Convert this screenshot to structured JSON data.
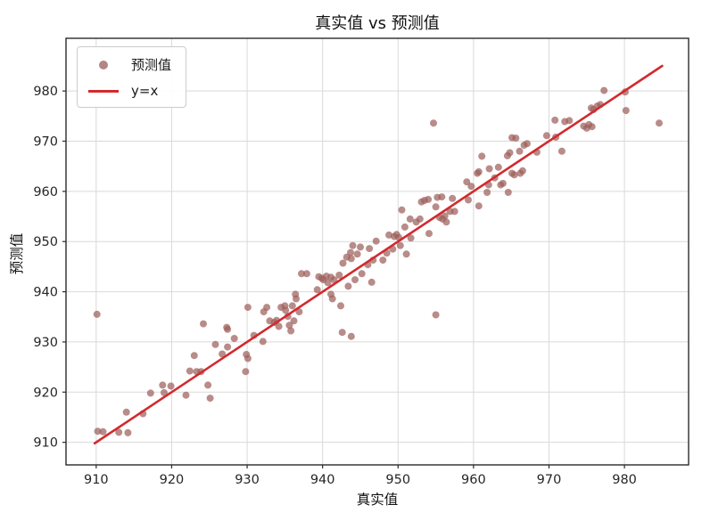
{
  "chart_data": {
    "type": "scatter",
    "title": "真实值 vs 预测值",
    "xlabel": "真实值",
    "ylabel": "预测值",
    "xlim": [
      906,
      988.5
    ],
    "ylim": [
      905.5,
      990.5
    ],
    "xticks": [
      910,
      920,
      930,
      940,
      950,
      960,
      970,
      980
    ],
    "yticks": [
      910,
      920,
      930,
      940,
      950,
      960,
      970,
      980
    ],
    "grid": true,
    "legend_position": "upper left",
    "colors": {
      "scatter": "#9c5f5c",
      "scatter_legend": "#b28682",
      "line": "#d22a2e",
      "grid": "#d9d9d9",
      "spine": "#2a2a2a",
      "tick_text": "#262626"
    },
    "legend": {
      "entries": [
        {
          "label": "预测值",
          "type": "marker"
        },
        {
          "label": "y=x",
          "type": "line"
        }
      ]
    },
    "series": [
      {
        "name": "预测值",
        "type": "scatter",
        "opacity": 0.72,
        "points": [
          [
            910.1,
            935.5
          ],
          [
            910.2,
            912.2
          ],
          [
            910.9,
            912.1
          ],
          [
            913.0,
            912.0
          ],
          [
            914.2,
            911.9
          ],
          [
            914.0,
            916.0
          ],
          [
            916.2,
            915.7
          ],
          [
            917.2,
            919.8
          ],
          [
            919.0,
            919.9
          ],
          [
            921.9,
            919.4
          ],
          [
            925.1,
            918.8
          ],
          [
            918.8,
            921.4
          ],
          [
            919.9,
            921.2
          ],
          [
            922.4,
            924.2
          ],
          [
            923.3,
            924.1
          ],
          [
            923.9,
            924.1
          ],
          [
            924.8,
            921.4
          ],
          [
            923.0,
            927.3
          ],
          [
            924.2,
            933.6
          ],
          [
            927.3,
            932.9
          ],
          [
            925.8,
            929.5
          ],
          [
            926.7,
            927.6
          ],
          [
            927.4,
            932.5
          ],
          [
            927.4,
            929.0
          ],
          [
            928.3,
            930.7
          ],
          [
            930.1,
            936.9
          ],
          [
            929.9,
            927.5
          ],
          [
            930.1,
            926.7
          ],
          [
            929.8,
            924.1
          ],
          [
            930.9,
            931.3
          ],
          [
            932.2,
            936.0
          ],
          [
            932.1,
            930.1
          ],
          [
            932.6,
            936.9
          ],
          [
            933.0,
            934.2
          ],
          [
            933.6,
            933.9
          ],
          [
            933.9,
            934.3
          ],
          [
            934.2,
            933.1
          ],
          [
            934.5,
            936.9
          ],
          [
            935.0,
            937.2
          ],
          [
            935.1,
            936.3
          ],
          [
            935.4,
            935.1
          ],
          [
            935.6,
            933.3
          ],
          [
            935.8,
            932.2
          ],
          [
            936.0,
            937.2
          ],
          [
            936.2,
            934.2
          ],
          [
            936.4,
            939.5
          ],
          [
            936.5,
            938.6
          ],
          [
            936.9,
            936.0
          ],
          [
            937.2,
            943.6
          ],
          [
            937.9,
            943.6
          ],
          [
            939.3,
            940.4
          ],
          [
            939.5,
            943.0
          ],
          [
            939.9,
            942.7
          ],
          [
            940.1,
            942.4
          ],
          [
            940.5,
            943.1
          ],
          [
            940.7,
            941.8
          ],
          [
            941.1,
            942.9
          ],
          [
            941.1,
            939.5
          ],
          [
            941.3,
            938.6
          ],
          [
            941.5,
            942.4
          ],
          [
            942.2,
            943.3
          ],
          [
            942.4,
            937.2
          ],
          [
            942.6,
            931.9
          ],
          [
            943.8,
            931.1
          ],
          [
            942.7,
            945.7
          ],
          [
            943.2,
            946.9
          ],
          [
            943.4,
            941.1
          ],
          [
            943.7,
            947.8
          ],
          [
            943.8,
            946.6
          ],
          [
            944.0,
            949.2
          ],
          [
            944.3,
            942.4
          ],
          [
            944.6,
            947.5
          ],
          [
            945.0,
            948.9
          ],
          [
            945.2,
            943.6
          ],
          [
            946.0,
            945.4
          ],
          [
            946.2,
            948.6
          ],
          [
            946.5,
            941.9
          ],
          [
            946.7,
            946.3
          ],
          [
            947.1,
            950.1
          ],
          [
            948.0,
            946.3
          ],
          [
            948.5,
            947.7
          ],
          [
            948.8,
            951.3
          ],
          [
            949.3,
            948.5
          ],
          [
            949.5,
            951.0
          ],
          [
            949.8,
            951.4
          ],
          [
            950.1,
            950.8
          ],
          [
            950.5,
            956.3
          ],
          [
            950.3,
            949.2
          ],
          [
            950.9,
            952.9
          ],
          [
            951.1,
            947.5
          ],
          [
            951.6,
            954.5
          ],
          [
            951.7,
            950.7
          ],
          [
            952.4,
            953.9
          ],
          [
            952.9,
            954.5
          ],
          [
            953.1,
            957.9
          ],
          [
            953.5,
            958.2
          ],
          [
            954.0,
            958.4
          ],
          [
            954.1,
            951.6
          ],
          [
            955.0,
            956.9
          ],
          [
            955.2,
            958.8
          ],
          [
            955.8,
            958.9
          ],
          [
            955.5,
            954.8
          ],
          [
            955.9,
            954.5
          ],
          [
            956.2,
            955.1
          ],
          [
            956.4,
            953.9
          ],
          [
            956.9,
            956.0
          ],
          [
            957.2,
            958.6
          ],
          [
            957.5,
            956.0
          ],
          [
            959.1,
            961.9
          ],
          [
            959.3,
            958.3
          ],
          [
            959.7,
            961.0
          ],
          [
            960.5,
            963.6
          ],
          [
            960.7,
            957.1
          ],
          [
            960.7,
            963.9
          ],
          [
            961.1,
            967.0
          ],
          [
            961.8,
            959.8
          ],
          [
            962.0,
            961.3
          ],
          [
            962.1,
            964.5
          ],
          [
            962.8,
            962.7
          ],
          [
            963.3,
            964.8
          ],
          [
            963.6,
            961.3
          ],
          [
            963.9,
            961.6
          ],
          [
            964.6,
            959.8
          ],
          [
            965.1,
            963.6
          ],
          [
            965.4,
            963.3
          ],
          [
            966.2,
            963.6
          ],
          [
            955.0,
            935.4
          ],
          [
            954.7,
            973.6
          ],
          [
            964.5,
            967.1
          ],
          [
            964.8,
            967.7
          ],
          [
            965.1,
            970.7
          ],
          [
            965.6,
            970.6
          ],
          [
            966.5,
            964.1
          ],
          [
            966.1,
            968.0
          ],
          [
            966.7,
            969.2
          ],
          [
            967.1,
            969.5
          ],
          [
            968.4,
            967.8
          ],
          [
            969.7,
            971.1
          ],
          [
            970.8,
            974.2
          ],
          [
            970.9,
            970.8
          ],
          [
            971.7,
            968.0
          ],
          [
            972.1,
            973.9
          ],
          [
            972.7,
            974.1
          ],
          [
            974.6,
            973.0
          ],
          [
            975.0,
            972.6
          ],
          [
            975.3,
            973.3
          ],
          [
            975.7,
            972.9
          ],
          [
            975.6,
            976.6
          ],
          [
            975.9,
            976.3
          ],
          [
            976.4,
            977.0
          ],
          [
            976.8,
            977.3
          ],
          [
            977.3,
            980.1
          ],
          [
            980.1,
            979.8
          ],
          [
            980.2,
            976.1
          ],
          [
            984.6,
            973.6
          ]
        ]
      },
      {
        "name": "y=x",
        "type": "line",
        "x": [
          909.8,
          985.0
        ],
        "y": [
          909.8,
          985.0
        ]
      }
    ]
  }
}
